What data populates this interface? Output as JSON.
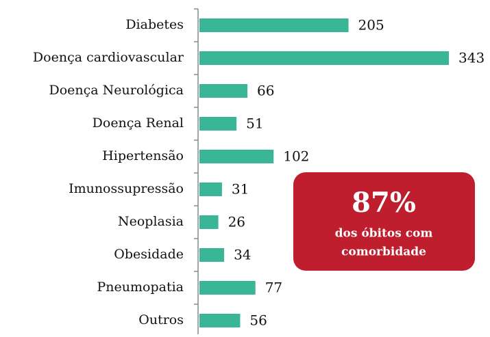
{
  "chart_data": {
    "type": "bar",
    "orientation": "horizontal",
    "categories": [
      "Diabetes",
      "Doença cardiovascular",
      "Doença Neurológica",
      "Doença Renal",
      "Hipertensão",
      "Imunossupressão",
      "Neoplasia",
      "Obesidade",
      "Pneumopatia",
      "Outros"
    ],
    "values": [
      205,
      343,
      66,
      51,
      102,
      31,
      26,
      34,
      77,
      56
    ],
    "color": "#3bb597",
    "annotation": {
      "headline": "87%",
      "lines": [
        "dos óbitos com",
        "comorbidade"
      ],
      "color": "#be1e2d"
    }
  }
}
